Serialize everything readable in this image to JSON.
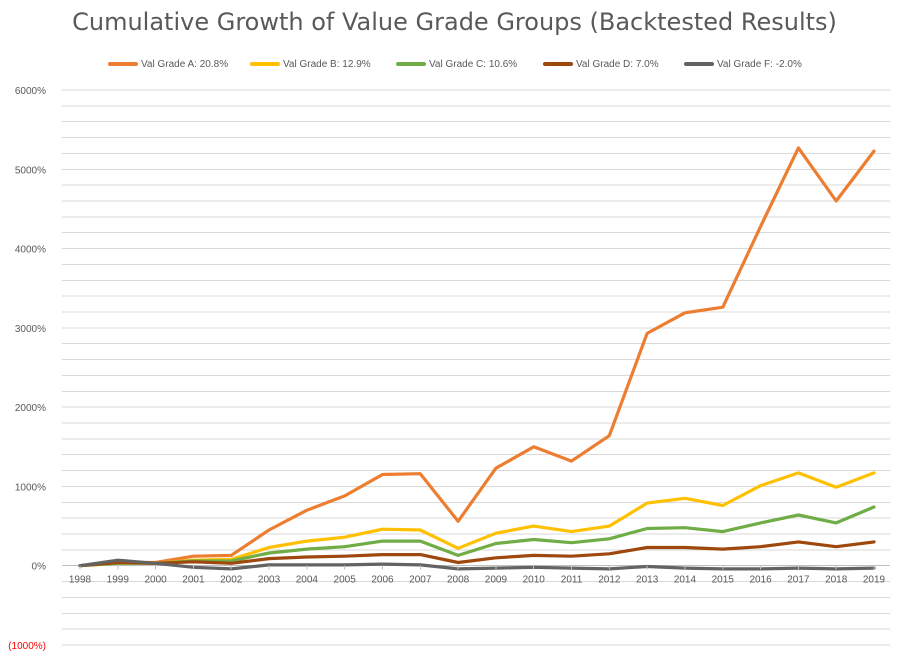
{
  "chart_data": {
    "type": "line",
    "title": "Cumulative Growth of Value Grade Groups (Backtested Results)",
    "xlabel": "",
    "ylabel": "",
    "categories": [
      "1998",
      "1999",
      "2000",
      "2001",
      "2002",
      "2003",
      "2004",
      "2005",
      "2006",
      "2007",
      "2008",
      "2009",
      "2010",
      "2011",
      "2012",
      "2013",
      "2014",
      "2015",
      "2016",
      "2017",
      "2018",
      "2019"
    ],
    "ylim": [
      -1000,
      6000
    ],
    "y_ticks": [
      {
        "value": 6000,
        "label": "6000%",
        "negative": false
      },
      {
        "value": 5000,
        "label": "5000%",
        "negative": false
      },
      {
        "value": 4000,
        "label": "4000%",
        "negative": false
      },
      {
        "value": 3000,
        "label": "3000%",
        "negative": false
      },
      {
        "value": 2000,
        "label": "2000%",
        "negative": false
      },
      {
        "value": 1000,
        "label": "1000%",
        "negative": false
      },
      {
        "value": 0,
        "label": "0%",
        "negative": false
      },
      {
        "value": -1000,
        "label": "(1000%)",
        "negative": true
      }
    ],
    "grid": true,
    "minor_grid_step": 200,
    "legend_position": "top",
    "colors": {
      "grid": "#d9d9d9",
      "axis": "#d9d9d9",
      "tick_text": "#595959",
      "negative_tick_text": "#ff0000"
    },
    "series": [
      {
        "name": "Val Grade A: 20.8%",
        "color": "#ed7d31",
        "values": [
          0,
          40,
          40,
          120,
          130,
          450,
          700,
          880,
          1150,
          1160,
          560,
          1230,
          1500,
          1320,
          1640,
          2930,
          3190,
          3260,
          4280,
          5270,
          4600,
          5230
        ]
      },
      {
        "name": "Val Grade B: 12.9%",
        "color": "#ffc000",
        "values": [
          0,
          30,
          30,
          70,
          80,
          230,
          310,
          360,
          460,
          450,
          220,
          410,
          500,
          430,
          500,
          790,
          850,
          760,
          1010,
          1170,
          990,
          1170
        ]
      },
      {
        "name": "Val Grade C: 10.6%",
        "color": "#70ad47",
        "values": [
          0,
          30,
          30,
          60,
          60,
          160,
          210,
          240,
          310,
          310,
          130,
          280,
          330,
          290,
          340,
          470,
          480,
          430,
          540,
          640,
          540,
          740
        ]
      },
      {
        "name": "Val Grade D: 7.0%",
        "color": "#9e480e",
        "values": [
          0,
          40,
          30,
          50,
          30,
          90,
          110,
          120,
          140,
          140,
          40,
          100,
          130,
          120,
          150,
          230,
          230,
          210,
          240,
          300,
          240,
          300
        ]
      },
      {
        "name": "Val Grade F: -2.0%",
        "color": "#636363",
        "values": [
          0,
          70,
          30,
          -20,
          -40,
          10,
          10,
          10,
          20,
          10,
          -40,
          -30,
          -20,
          -30,
          -40,
          -10,
          -30,
          -40,
          -40,
          -30,
          -40,
          -30
        ]
      }
    ]
  }
}
